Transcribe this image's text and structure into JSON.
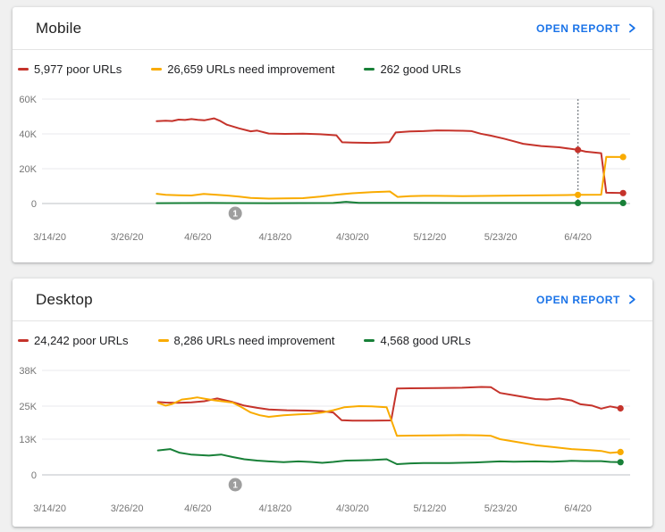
{
  "page": {
    "background": "#f0f0f0"
  },
  "colors": {
    "poor": "#c5332b",
    "needs_improvement": "#f9ab00",
    "good": "#188038",
    "link": "#1a73e8",
    "axis_label": "#757575",
    "gridline": "#e9eaec",
    "axis_line": "#bdc1c6",
    "marker_line": "#80868b",
    "annotation_bg": "#9e9e9e"
  },
  "cards": [
    {
      "title": "Mobile",
      "open_report_label": "OPEN REPORT",
      "legend": [
        {
          "label": "5,977 poor URLs"
        },
        {
          "label": "26,659 URLs need improvement"
        },
        {
          "label": "262 good URLs"
        }
      ],
      "chart_index": 0
    },
    {
      "title": "Desktop",
      "open_report_label": "OPEN REPORT",
      "legend": [
        {
          "label": "24,242 poor URLs"
        },
        {
          "label": "8,286 URLs need improvement"
        },
        {
          "label": "4,568 good URLs"
        }
      ],
      "chart_index": 1
    }
  ],
  "chart_data": [
    {
      "type": "line",
      "title": "Mobile",
      "x_unit": "days since 3/14/20",
      "y_unit": "URLs, values in thousands (K)",
      "x_tick_labels": [
        "3/14/20",
        "3/26/20",
        "4/6/20",
        "4/18/20",
        "4/30/20",
        "5/12/20",
        "5/23/20",
        "6/4/20"
      ],
      "x_tick_days": [
        0,
        12,
        23,
        35,
        47,
        59,
        70,
        82
      ],
      "y_tick_labels": [
        "60K",
        "40K",
        "20K",
        "0"
      ],
      "y_tick_values": [
        60000,
        40000,
        20000,
        0
      ],
      "ylim": [
        0,
        60000
      ],
      "grid": true,
      "legend_position": "top",
      "marker_line_day": 82,
      "annotation": {
        "label": "1",
        "day": 28.8
      },
      "series": [
        {
          "key": "poor",
          "name": "poor URLs",
          "color": "#c5332b",
          "latest": 5977,
          "points": [
            [
              16.6,
              47.3
            ],
            [
              18,
              47.6
            ],
            [
              19,
              47.4
            ],
            [
              20,
              48.2
            ],
            [
              21,
              48.0
            ],
            [
              22,
              48.5
            ],
            [
              23,
              48.1
            ],
            [
              24,
              47.8
            ],
            [
              25.5,
              48.9
            ],
            [
              26.5,
              47.4
            ],
            [
              27.5,
              45.3
            ],
            [
              29.4,
              43.2
            ],
            [
              31.2,
              41.5
            ],
            [
              32.2,
              41.9
            ],
            [
              34,
              40.2
            ],
            [
              36.5,
              40.0
            ],
            [
              39.3,
              40.1
            ],
            [
              42,
              39.8
            ],
            [
              43.3,
              39.5
            ],
            [
              44.5,
              39.2
            ],
            [
              45.4,
              35.2
            ],
            [
              47,
              35.0
            ],
            [
              50,
              34.8
            ],
            [
              52.7,
              35.3
            ],
            [
              53.7,
              40.8
            ],
            [
              55.9,
              41.4
            ],
            [
              58,
              41.6
            ],
            [
              60.1,
              42.0
            ],
            [
              62,
              41.9
            ],
            [
              64.1,
              41.8
            ],
            [
              65.5,
              41.6
            ],
            [
              66.9,
              40.1
            ],
            [
              68.5,
              39.0
            ],
            [
              70.5,
              37.3
            ],
            [
              72,
              35.8
            ],
            [
              73.5,
              34.3
            ],
            [
              76.3,
              33.0
            ],
            [
              79.1,
              32.3
            ],
            [
              82,
              30.8
            ],
            [
              83.2,
              29.8
            ],
            [
              85.6,
              28.9
            ],
            [
              86.4,
              6.2
            ],
            [
              89,
              6.0
            ]
          ],
          "dots": [
            [
              82,
              30.8
            ],
            [
              89,
              6.0
            ]
          ]
        },
        {
          "key": "needs-improvement",
          "name": "URLs need improvement",
          "color": "#f9ab00",
          "latest": 26659,
          "points": [
            [
              16.6,
              5.6
            ],
            [
              18,
              5.0
            ],
            [
              20,
              4.7
            ],
            [
              22,
              4.6
            ],
            [
              23.9,
              5.5
            ],
            [
              25.7,
              5.1
            ],
            [
              27.5,
              4.6
            ],
            [
              29.4,
              4.0
            ],
            [
              31.2,
              3.2
            ],
            [
              34,
              2.8
            ],
            [
              36.5,
              2.9
            ],
            [
              39.3,
              3.1
            ],
            [
              42,
              4.0
            ],
            [
              44.5,
              5.1
            ],
            [
              47,
              5.9
            ],
            [
              50,
              6.5
            ],
            [
              52,
              6.8
            ],
            [
              52.8,
              6.9
            ],
            [
              54,
              3.8
            ],
            [
              55.9,
              4.2
            ],
            [
              58,
              4.4
            ],
            [
              60.1,
              4.4
            ],
            [
              64.1,
              4.2
            ],
            [
              68.5,
              4.4
            ],
            [
              73.5,
              4.6
            ],
            [
              79.1,
              4.8
            ],
            [
              82,
              5.0
            ],
            [
              85.6,
              5.1
            ],
            [
              86.4,
              26.8
            ],
            [
              89,
              26.7
            ]
          ],
          "dots": [
            [
              82,
              5.0
            ],
            [
              89,
              26.7
            ]
          ]
        },
        {
          "key": "good",
          "name": "good URLs",
          "color": "#188038",
          "latest": 262,
          "points": [
            [
              16.6,
              0.2
            ],
            [
              25,
              0.3
            ],
            [
              34,
              0.2
            ],
            [
              44,
              0.3
            ],
            [
              46,
              1.0
            ],
            [
              48,
              0.4
            ],
            [
              55,
              0.4
            ],
            [
              65,
              0.3
            ],
            [
              75,
              0.3
            ],
            [
              82,
              0.3
            ],
            [
              89,
              0.3
            ]
          ],
          "dots": [
            [
              82,
              0.3
            ],
            [
              89,
              0.3
            ]
          ]
        }
      ]
    },
    {
      "type": "line",
      "title": "Desktop",
      "x_unit": "days since 3/14/20",
      "y_unit": "URLs, values in thousands (K)",
      "x_tick_labels": [
        "3/14/20",
        "3/26/20",
        "4/6/20",
        "4/18/20",
        "4/30/20",
        "5/12/20",
        "5/23/20",
        "6/4/20"
      ],
      "x_tick_days": [
        0,
        12,
        23,
        35,
        47,
        59,
        70,
        82
      ],
      "y_tick_labels": [
        "38K",
        "25K",
        "13K",
        "0"
      ],
      "y_tick_values": [
        38000,
        25000,
        13000,
        0
      ],
      "ylim": [
        0,
        38000
      ],
      "grid": true,
      "legend_position": "top",
      "marker_line_day": null,
      "annotation": {
        "label": "1",
        "day": 28.8
      },
      "series": [
        {
          "key": "poor",
          "name": "poor URLs",
          "color": "#c5332b",
          "latest": 24242,
          "points": [
            [
              16.8,
              26.5
            ],
            [
              18,
              26.3
            ],
            [
              20,
              26.2
            ],
            [
              22,
              26.4
            ],
            [
              24,
              26.8
            ],
            [
              26,
              27.8
            ],
            [
              28.4,
              26.5
            ],
            [
              30.2,
              25.2
            ],
            [
              32.2,
              24.4
            ],
            [
              34,
              23.8
            ],
            [
              36.8,
              23.5
            ],
            [
              40,
              23.4
            ],
            [
              42.3,
              23.2
            ],
            [
              44,
              22.7
            ],
            [
              45.3,
              19.9
            ],
            [
              47,
              19.7
            ],
            [
              50,
              19.7
            ],
            [
              53,
              19.8
            ],
            [
              53.9,
              31.4
            ],
            [
              56,
              31.5
            ],
            [
              60,
              31.6
            ],
            [
              64,
              31.7
            ],
            [
              67,
              32.0
            ],
            [
              68.5,
              31.9
            ],
            [
              69.9,
              29.8
            ],
            [
              72.7,
              28.7
            ],
            [
              75.4,
              27.6
            ],
            [
              77.2,
              27.4
            ],
            [
              79.1,
              27.8
            ],
            [
              81,
              27.1
            ],
            [
              82.4,
              25.7
            ],
            [
              84.2,
              25.2
            ],
            [
              85.6,
              24.1
            ],
            [
              87,
              24.9
            ],
            [
              88.6,
              24.2
            ]
          ],
          "dots": [
            [
              88.6,
              24.2
            ]
          ]
        },
        {
          "key": "needs-improvement",
          "name": "URLs need improvement",
          "color": "#f9ab00",
          "latest": 8286,
          "points": [
            [
              16.8,
              26.2
            ],
            [
              18,
              25.2
            ],
            [
              19,
              25.8
            ],
            [
              20.5,
              27.4
            ],
            [
              21.9,
              27.8
            ],
            [
              22.9,
              28.2
            ],
            [
              24.3,
              27.6
            ],
            [
              25.7,
              27.1
            ],
            [
              27,
              26.7
            ],
            [
              28.4,
              26.3
            ],
            [
              29.8,
              24.6
            ],
            [
              31.2,
              22.7
            ],
            [
              32.6,
              21.7
            ],
            [
              34,
              21.1
            ],
            [
              36.3,
              21.7
            ],
            [
              38.6,
              22.0
            ],
            [
              40.5,
              22.2
            ],
            [
              42.3,
              22.7
            ],
            [
              44,
              23.5
            ],
            [
              45.7,
              24.6
            ],
            [
              48,
              25.0
            ],
            [
              50,
              24.9
            ],
            [
              52.3,
              24.6
            ],
            [
              53.9,
              14.2
            ],
            [
              56,
              14.3
            ],
            [
              60,
              14.4
            ],
            [
              64,
              14.5
            ],
            [
              67,
              14.4
            ],
            [
              68.5,
              14.2
            ],
            [
              69.9,
              13.0
            ],
            [
              72.7,
              11.9
            ],
            [
              75.4,
              10.8
            ],
            [
              78.2,
              10.1
            ],
            [
              81,
              9.4
            ],
            [
              83.8,
              9.0
            ],
            [
              85.6,
              8.7
            ],
            [
              87,
              8.0
            ],
            [
              88.6,
              8.3
            ]
          ],
          "dots": [
            [
              88.6,
              8.3
            ]
          ]
        },
        {
          "key": "good",
          "name": "good URLs",
          "color": "#188038",
          "latest": 4568,
          "points": [
            [
              16.8,
              8.9
            ],
            [
              18.7,
              9.4
            ],
            [
              20.1,
              8.1
            ],
            [
              21.9,
              7.4
            ],
            [
              24.7,
              7.0
            ],
            [
              26.6,
              7.4
            ],
            [
              28.4,
              6.5
            ],
            [
              30.2,
              5.7
            ],
            [
              32.2,
              5.2
            ],
            [
              34,
              4.9
            ],
            [
              36.3,
              4.6
            ],
            [
              38.6,
              4.9
            ],
            [
              40.5,
              4.7
            ],
            [
              42.3,
              4.4
            ],
            [
              44,
              4.7
            ],
            [
              46,
              5.2
            ],
            [
              48,
              5.3
            ],
            [
              50,
              5.4
            ],
            [
              52.3,
              5.7
            ],
            [
              53.9,
              3.9
            ],
            [
              56,
              4.2
            ],
            [
              58,
              4.3
            ],
            [
              62,
              4.3
            ],
            [
              66,
              4.5
            ],
            [
              69.9,
              4.9
            ],
            [
              72,
              4.8
            ],
            [
              75.4,
              4.9
            ],
            [
              78,
              4.8
            ],
            [
              81,
              5.1
            ],
            [
              83,
              5.0
            ],
            [
              85.6,
              5.0
            ],
            [
              87,
              4.7
            ],
            [
              88.6,
              4.6
            ]
          ],
          "dots": [
            [
              88.6,
              4.6
            ]
          ]
        }
      ]
    }
  ]
}
